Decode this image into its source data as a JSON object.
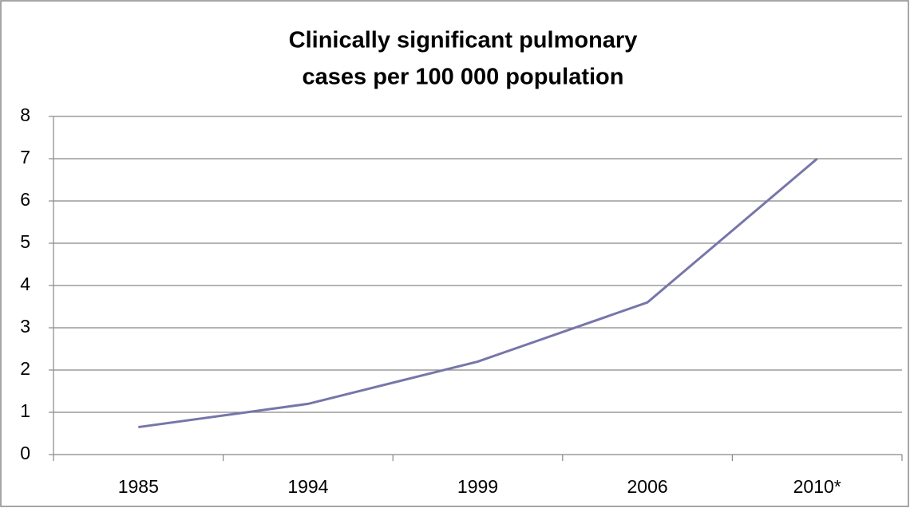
{
  "chart_data": {
    "type": "line",
    "title": [
      "Clinically significant pulmonary",
      "cases per 100 000 population"
    ],
    "categories": [
      "1985",
      "1994",
      "1999",
      "2006",
      "2010*"
    ],
    "series": [
      {
        "name": null,
        "color": "#7676aa",
        "values": [
          0.65,
          1.2,
          2.2,
          3.6,
          7.0
        ]
      }
    ],
    "ylim": [
      0,
      8
    ],
    "yticks": [
      0,
      1,
      2,
      3,
      4,
      5,
      6,
      7,
      8
    ],
    "grid": true
  }
}
